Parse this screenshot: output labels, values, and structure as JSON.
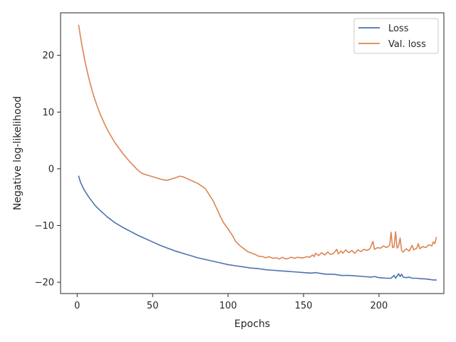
{
  "chart_data": {
    "type": "line",
    "xlabel": "Epochs",
    "ylabel": "Negative log-likelihood",
    "xlim": [
      -11,
      243
    ],
    "ylim": [
      -22,
      27.5
    ],
    "xticks": [
      0,
      50,
      100,
      150,
      200
    ],
    "yticks": [
      -20,
      -10,
      0,
      10,
      20
    ],
    "grid": false,
    "legend_position": "top-right",
    "series": [
      {
        "name": "Loss",
        "color": "#4c72b0",
        "points": [
          [
            1,
            -1.3
          ],
          [
            2,
            -2.2
          ],
          [
            4,
            -3.4
          ],
          [
            6,
            -4.3
          ],
          [
            8,
            -5.1
          ],
          [
            10,
            -5.8
          ],
          [
            12,
            -6.5
          ],
          [
            15,
            -7.3
          ],
          [
            18,
            -8.0
          ],
          [
            20,
            -8.5
          ],
          [
            25,
            -9.5
          ],
          [
            30,
            -10.3
          ],
          [
            35,
            -11.0
          ],
          [
            40,
            -11.7
          ],
          [
            45,
            -12.3
          ],
          [
            50,
            -12.9
          ],
          [
            55,
            -13.5
          ],
          [
            60,
            -14.0
          ],
          [
            65,
            -14.5
          ],
          [
            70,
            -14.9
          ],
          [
            75,
            -15.3
          ],
          [
            80,
            -15.7
          ],
          [
            85,
            -16.0
          ],
          [
            90,
            -16.3
          ],
          [
            95,
            -16.6
          ],
          [
            100,
            -16.9
          ],
          [
            105,
            -17.1
          ],
          [
            110,
            -17.3
          ],
          [
            115,
            -17.5
          ],
          [
            120,
            -17.6
          ],
          [
            125,
            -17.8
          ],
          [
            130,
            -17.9
          ],
          [
            135,
            -18.0
          ],
          [
            140,
            -18.1
          ],
          [
            145,
            -18.2
          ],
          [
            150,
            -18.3
          ],
          [
            155,
            -18.4
          ],
          [
            158,
            -18.3
          ],
          [
            160,
            -18.4
          ],
          [
            165,
            -18.6
          ],
          [
            170,
            -18.6
          ],
          [
            175,
            -18.8
          ],
          [
            180,
            -18.8
          ],
          [
            185,
            -18.9
          ],
          [
            190,
            -19.0
          ],
          [
            195,
            -19.1
          ],
          [
            197,
            -19.0
          ],
          [
            200,
            -19.2
          ],
          [
            205,
            -19.3
          ],
          [
            208,
            -19.3
          ],
          [
            210,
            -18.8
          ],
          [
            211,
            -19.3
          ],
          [
            213,
            -18.5
          ],
          [
            214,
            -19.0
          ],
          [
            215,
            -18.6
          ],
          [
            216,
            -19.1
          ],
          [
            218,
            -19.2
          ],
          [
            220,
            -19.1
          ],
          [
            222,
            -19.3
          ],
          [
            225,
            -19.3
          ],
          [
            228,
            -19.4
          ],
          [
            230,
            -19.4
          ],
          [
            233,
            -19.5
          ],
          [
            236,
            -19.6
          ],
          [
            238,
            -19.6
          ]
        ]
      },
      {
        "name": "Val. loss",
        "color": "#dd8452",
        "points": [
          [
            1,
            25.3
          ],
          [
            2,
            23.6
          ],
          [
            3,
            22.0
          ],
          [
            4,
            20.6
          ],
          [
            5,
            19.2
          ],
          [
            6,
            18.0
          ],
          [
            7,
            16.8
          ],
          [
            8,
            15.7
          ],
          [
            9,
            14.7
          ],
          [
            10,
            13.7
          ],
          [
            12,
            12.0
          ],
          [
            15,
            9.8
          ],
          [
            18,
            8.0
          ],
          [
            20,
            6.9
          ],
          [
            25,
            4.6
          ],
          [
            30,
            2.8
          ],
          [
            35,
            1.2
          ],
          [
            40,
            -0.2
          ],
          [
            43,
            -0.8
          ],
          [
            45,
            -1.0
          ],
          [
            50,
            -1.4
          ],
          [
            55,
            -1.8
          ],
          [
            58,
            -2.0
          ],
          [
            60,
            -2.0
          ],
          [
            65,
            -1.6
          ],
          [
            68,
            -1.3
          ],
          [
            70,
            -1.4
          ],
          [
            75,
            -2.0
          ],
          [
            80,
            -2.6
          ],
          [
            85,
            -3.5
          ],
          [
            88,
            -4.8
          ],
          [
            90,
            -5.6
          ],
          [
            93,
            -7.3
          ],
          [
            95,
            -8.5
          ],
          [
            97,
            -9.5
          ],
          [
            100,
            -10.6
          ],
          [
            103,
            -11.8
          ],
          [
            105,
            -12.8
          ],
          [
            108,
            -13.6
          ],
          [
            110,
            -14.0
          ],
          [
            113,
            -14.6
          ],
          [
            115,
            -14.8
          ],
          [
            118,
            -15.1
          ],
          [
            120,
            -15.4
          ],
          [
            123,
            -15.5
          ],
          [
            125,
            -15.7
          ],
          [
            127,
            -15.5
          ],
          [
            130,
            -15.8
          ],
          [
            132,
            -15.7
          ],
          [
            134,
            -15.9
          ],
          [
            136,
            -15.6
          ],
          [
            138,
            -15.9
          ],
          [
            140,
            -15.8
          ],
          [
            142,
            -15.6
          ],
          [
            144,
            -15.8
          ],
          [
            146,
            -15.6
          ],
          [
            148,
            -15.7
          ],
          [
            150,
            -15.7
          ],
          [
            152,
            -15.5
          ],
          [
            154,
            -15.6
          ],
          [
            156,
            -15.2
          ],
          [
            157,
            -15.5
          ],
          [
            158,
            -14.9
          ],
          [
            160,
            -15.3
          ],
          [
            162,
            -14.8
          ],
          [
            164,
            -15.2
          ],
          [
            166,
            -14.7
          ],
          [
            168,
            -15.1
          ],
          [
            170,
            -14.9
          ],
          [
            172,
            -14.2
          ],
          [
            173,
            -15.0
          ],
          [
            175,
            -14.5
          ],
          [
            176,
            -14.9
          ],
          [
            178,
            -14.3
          ],
          [
            180,
            -14.8
          ],
          [
            182,
            -14.4
          ],
          [
            184,
            -14.9
          ],
          [
            186,
            -14.3
          ],
          [
            188,
            -14.6
          ],
          [
            190,
            -14.2
          ],
          [
            192,
            -14.4
          ],
          [
            194,
            -14.1
          ],
          [
            196,
            -12.8
          ],
          [
            197,
            -14.2
          ],
          [
            199,
            -13.9
          ],
          [
            201,
            -14.0
          ],
          [
            203,
            -13.6
          ],
          [
            205,
            -13.9
          ],
          [
            207,
            -13.5
          ],
          [
            208,
            -11.2
          ],
          [
            209,
            -13.9
          ],
          [
            210,
            -13.8
          ],
          [
            211,
            -11.1
          ],
          [
            212,
            -14.0
          ],
          [
            213,
            -13.6
          ],
          [
            214,
            -12.2
          ],
          [
            215,
            -14.4
          ],
          [
            216,
            -14.7
          ],
          [
            218,
            -14.1
          ],
          [
            220,
            -14.5
          ],
          [
            222,
            -13.5
          ],
          [
            223,
            -14.3
          ],
          [
            225,
            -14.0
          ],
          [
            226,
            -13.2
          ],
          [
            227,
            -14.1
          ],
          [
            229,
            -13.7
          ],
          [
            231,
            -13.9
          ],
          [
            233,
            -13.4
          ],
          [
            235,
            -13.6
          ],
          [
            236,
            -12.9
          ],
          [
            237,
            -13.2
          ],
          [
            238,
            -12.1
          ]
        ]
      }
    ]
  }
}
